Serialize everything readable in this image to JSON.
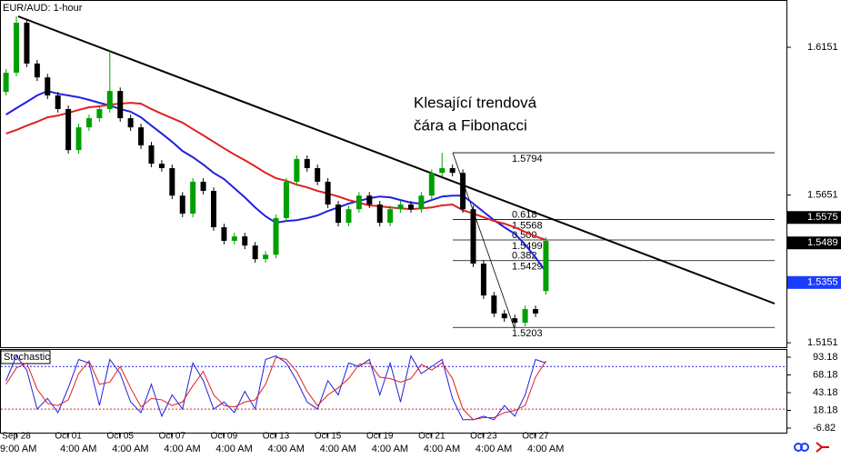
{
  "chart_data": [
    {
      "type": "candlestick",
      "title": "EUR/AUD: 1-hour",
      "categories": [
        null,
        "Sep 28",
        null,
        null,
        null,
        null,
        "Oct 01",
        null,
        null,
        null,
        null,
        "Oct 05",
        null,
        null,
        null,
        null,
        "Oct 07",
        null,
        null,
        null,
        null,
        "Oct 09",
        null,
        null,
        null,
        null,
        "Oct 13",
        null,
        null,
        null,
        null,
        "Oct 15",
        null,
        null,
        null,
        null,
        "Oct 19",
        null,
        null,
        null,
        null,
        "Oct 21",
        null,
        null,
        null,
        null,
        "Oct 23",
        null,
        null,
        null,
        null,
        "Oct 27",
        null
      ],
      "time_labels": [
        "9:00 AM",
        "4:00 AM",
        "4:00 AM",
        "4:00 AM",
        "4:00 AM",
        "4:00 AM",
        "4:00 AM",
        "4:00 AM",
        "4:00 AM",
        "4:00 AM",
        "4:00 AM"
      ],
      "open": [
        1.6,
        1.6065,
        1.6234,
        1.6096,
        1.6049,
        1.5988,
        1.5942,
        1.5803,
        1.588,
        1.5911,
        1.5942,
        1.6003,
        1.5911,
        1.588,
        1.5819,
        1.5757,
        1.5742,
        1.5649,
        1.5588,
        1.5696,
        1.5665,
        1.5542,
        1.5496,
        1.5511,
        1.548,
        1.5434,
        1.5449,
        1.5573,
        1.5696,
        1.5773,
        1.5742,
        1.5696,
        1.5619,
        1.5557,
        1.5603,
        1.5649,
        1.5619,
        1.5557,
        1.5603,
        1.5619,
        1.5603,
        1.5649,
        1.5726,
        1.5742,
        1.5726,
        1.5603,
        1.5419,
        1.5311,
        1.525,
        1.5234,
        1.5219,
        1.5265,
        1.5326
      ],
      "high": [
        1.6077,
        1.6256,
        1.6246,
        1.6108,
        1.6061,
        1.6,
        1.5954,
        1.5892,
        1.5923,
        1.5954,
        1.6142,
        1.6015,
        1.5923,
        1.5892,
        1.5831,
        1.5769,
        1.5754,
        1.5661,
        1.5708,
        1.5708,
        1.5677,
        1.5554,
        1.5523,
        1.5523,
        1.5492,
        1.5461,
        1.5585,
        1.5708,
        1.5785,
        1.5785,
        1.5754,
        1.5708,
        1.5631,
        1.5615,
        1.5661,
        1.5661,
        1.5631,
        1.5615,
        1.5631,
        1.5631,
        1.5661,
        1.5738,
        1.5794,
        1.5754,
        1.5738,
        1.5615,
        1.5431,
        1.5323,
        1.5262,
        1.5246,
        1.5277,
        1.5277,
        1.5508
      ],
      "low": [
        1.5988,
        1.6053,
        1.6084,
        1.6037,
        1.5976,
        1.593,
        1.5791,
        1.5791,
        1.5868,
        1.5899,
        1.593,
        1.5899,
        1.5868,
        1.5807,
        1.5745,
        1.573,
        1.5637,
        1.5576,
        1.5576,
        1.5653,
        1.553,
        1.5484,
        1.5484,
        1.5468,
        1.5422,
        1.5422,
        1.5437,
        1.5561,
        1.5684,
        1.573,
        1.5684,
        1.5607,
        1.5545,
        1.5545,
        1.5591,
        1.5607,
        1.5545,
        1.5545,
        1.5591,
        1.5591,
        1.5591,
        1.5637,
        1.5714,
        1.5714,
        1.5591,
        1.5407,
        1.5299,
        1.5238,
        1.5222,
        1.5203,
        1.5207,
        1.5238,
        1.5314
      ],
      "close": [
        1.6065,
        1.6234,
        1.6096,
        1.6049,
        1.5988,
        1.5942,
        1.5803,
        1.588,
        1.5911,
        1.5942,
        1.6003,
        1.5911,
        1.588,
        1.5819,
        1.5757,
        1.5742,
        1.5649,
        1.5588,
        1.5696,
        1.5665,
        1.5542,
        1.5496,
        1.5511,
        1.548,
        1.5434,
        1.5449,
        1.5573,
        1.5696,
        1.5773,
        1.5742,
        1.5696,
        1.5619,
        1.5557,
        1.5603,
        1.5649,
        1.5619,
        1.5557,
        1.5603,
        1.5619,
        1.5603,
        1.5649,
        1.5726,
        1.5742,
        1.5726,
        1.5603,
        1.5419,
        1.5311,
        1.525,
        1.5234,
        1.5219,
        1.5265,
        1.525,
        1.5496
      ],
      "up_color": "#00a000",
      "down_color": "#000000",
      "overlays": [
        {
          "color": "#2020e0",
          "values": [
            1.5923,
            1.5945,
            1.5966,
            1.5988,
            1.6003,
            1.5994,
            1.5988,
            1.5982,
            1.5973,
            1.5963,
            1.5954,
            1.5942,
            1.5933,
            1.5914,
            1.5886,
            1.5859,
            1.5831,
            1.58,
            1.5779,
            1.5754,
            1.5726,
            1.5705,
            1.5674,
            1.5643,
            1.5609,
            1.5579,
            1.5557,
            1.5563,
            1.5566,
            1.5573,
            1.5582,
            1.5597,
            1.5609,
            1.5622,
            1.5631,
            1.564,
            1.5646,
            1.5643,
            1.5634,
            1.5625,
            1.5622,
            1.5634,
            1.5646,
            1.5649,
            1.5649,
            1.5622,
            1.5594,
            1.5566,
            1.5542,
            1.552,
            1.5483,
            1.544,
            1.5391
          ]
        },
        {
          "color": "#e02020",
          "values": [
            1.5859,
            1.5871,
            1.5886,
            1.5899,
            1.5914,
            1.592,
            1.5929,
            1.5939,
            1.5948,
            1.5951,
            1.5957,
            1.596,
            1.5963,
            1.596,
            1.5942,
            1.5926,
            1.5911,
            1.5896,
            1.5874,
            1.5853,
            1.5831,
            1.5809,
            1.5788,
            1.5769,
            1.5748,
            1.5726,
            1.5708,
            1.5699,
            1.5686,
            1.5677,
            1.5665,
            1.5656,
            1.5646,
            1.5634,
            1.5625,
            1.5616,
            1.5613,
            1.5609,
            1.5606,
            1.5603,
            1.5606,
            1.5609,
            1.5616,
            1.5619,
            1.56,
            1.5588,
            1.5576,
            1.5563,
            1.5554,
            1.5542,
            1.5526,
            1.5511,
            1.5499
          ]
        }
      ],
      "ylim": [
        1.5136,
        1.6311
      ],
      "yticks": [
        1.5151,
        1.5651,
        1.6151
      ],
      "price_markers": [
        {
          "value": 1.5575,
          "color": "#000000"
        },
        {
          "value": 1.5489,
          "color": "#000000"
        },
        {
          "value": 1.5355,
          "color": "#1a3cff"
        }
      ],
      "fibonacci": [
        {
          "value": 1.5794
        },
        {
          "ratio": "0.618",
          "value": 1.5568
        },
        {
          "ratio": "0.500",
          "value": 1.5499
        },
        {
          "ratio": "0.382",
          "value": 1.5429
        },
        {
          "value": 1.5203
        }
      ],
      "annotation": [
        "Klesající trendová",
        "čára a Fibonacci"
      ]
    },
    {
      "type": "line",
      "title": "Stochastic",
      "series": [
        {
          "color": "#2020e0",
          "values": [
            60,
            95,
            75,
            20,
            35,
            15,
            50,
            90,
            85,
            25,
            90,
            70,
            30,
            15,
            55,
            10,
            40,
            20,
            85,
            60,
            20,
            30,
            15,
            45,
            20,
            90,
            95,
            85,
            60,
            30,
            20,
            60,
            40,
            85,
            80,
            90,
            40,
            85,
            30,
            95,
            70,
            80,
            90,
            35,
            5,
            5,
            10,
            5,
            25,
            10,
            40,
            90,
            85
          ]
        },
        {
          "color": "#e02020",
          "values": [
            55,
            78,
            85,
            48,
            28,
            25,
            33,
            70,
            88,
            55,
            58,
            80,
            50,
            23,
            35,
            33,
            25,
            30,
            53,
            73,
            40,
            25,
            23,
            30,
            33,
            55,
            93,
            90,
            73,
            45,
            25,
            40,
            50,
            63,
            83,
            85,
            65,
            63,
            58,
            63,
            83,
            75,
            85,
            63,
            20,
            5,
            8,
            8,
            15,
            18,
            25,
            65,
            88
          ]
        }
      ],
      "ylim": [
        -14.5,
        104.7
      ],
      "yticks": [
        93.18,
        68.18,
        43.18,
        18.18,
        -6.82
      ],
      "levels": [
        {
          "value": 80,
          "color": "#2020e0"
        },
        {
          "value": 20,
          "color": "#e02020"
        }
      ]
    }
  ]
}
